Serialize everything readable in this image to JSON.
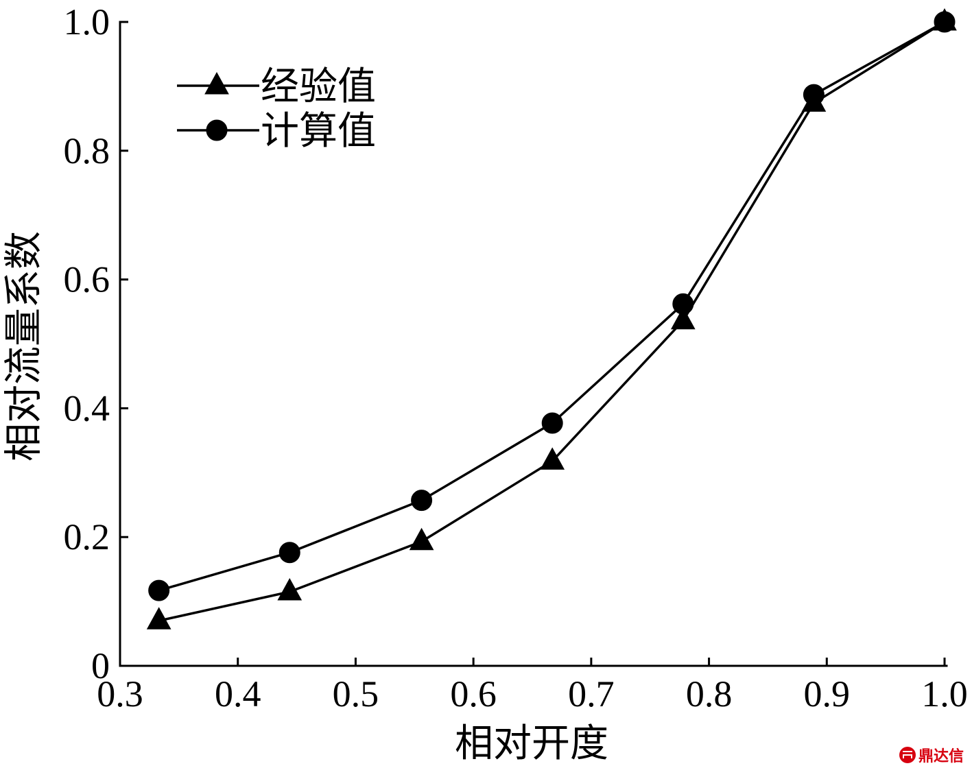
{
  "chart_data": {
    "type": "line",
    "title": "",
    "xlabel": "相对开度",
    "ylabel": "相对流量系数",
    "xlim": [
      0.3,
      1.0
    ],
    "ylim": [
      0,
      1.0
    ],
    "x_ticks": [
      "0.3",
      "0.4",
      "0.5",
      "0.6",
      "0.7",
      "0.8",
      "0.9",
      "1.0"
    ],
    "y_ticks": [
      "0",
      "0.2",
      "0.4",
      "0.6",
      "0.8",
      "1.0"
    ],
    "grid": false,
    "legend_position": "top-left",
    "series": [
      {
        "name": "经验值",
        "marker": "triangle",
        "color": "#000000",
        "x": [
          0.333,
          0.444,
          0.556,
          0.667,
          0.778,
          0.889,
          1.0
        ],
        "y": [
          0.07,
          0.115,
          0.193,
          0.318,
          0.536,
          0.874,
          1.0
        ]
      },
      {
        "name": "计算值",
        "marker": "circle",
        "color": "#000000",
        "x": [
          0.333,
          0.444,
          0.556,
          0.667,
          0.778,
          0.889,
          1.0
        ],
        "y": [
          0.117,
          0.176,
          0.257,
          0.377,
          0.562,
          0.887,
          1.0
        ]
      }
    ]
  },
  "watermark": {
    "text": "鼎达信",
    "color": "#d7000f"
  }
}
